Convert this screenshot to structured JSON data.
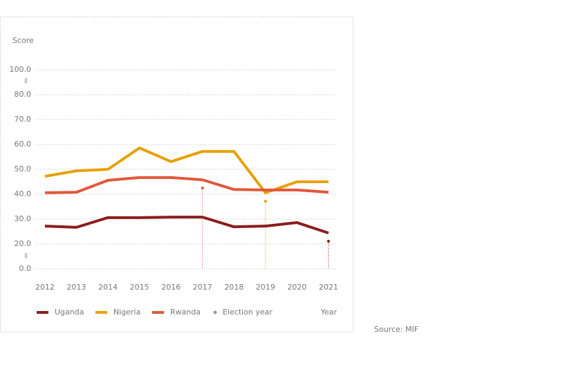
{
  "chart_data": {
    "type": "line",
    "y_label": "Score",
    "x_label": "Year",
    "source": "Source: MIF",
    "categories": [
      "2012",
      "2013",
      "2014",
      "2015",
      "2016",
      "2017",
      "2018",
      "2019",
      "2020",
      "2021"
    ],
    "series": [
      {
        "name": "Uganda",
        "color": "#8b1e1e",
        "values": [
          27.2,
          26.7,
          30.6,
          30.6,
          30.8,
          30.8,
          26.9,
          27.2,
          28.6,
          24.4
        ]
      },
      {
        "name": "Nigeria",
        "color": "#e8a000",
        "values": [
          47.2,
          49.4,
          50.0,
          58.6,
          53.1,
          57.2,
          57.2,
          40.6,
          45.0,
          45.0
        ]
      },
      {
        "name": "Rwanda",
        "color": "#e0583a",
        "values": [
          40.6,
          40.8,
          45.6,
          46.7,
          46.7,
          45.8,
          41.9,
          41.7,
          41.7,
          40.8
        ]
      }
    ],
    "election_legend": "Election year",
    "election_legend_color": "#999999",
    "election_markers": [
      {
        "category": "2017",
        "value": 42.5,
        "color": "#e0583a"
      },
      {
        "category": "2019",
        "value": 37.2,
        "color": "#e8a000"
      },
      {
        "category": "2021",
        "value": 21.1,
        "color": "#8b1e1e"
      }
    ],
    "ylim": [
      0,
      100
    ],
    "yticks": [
      {
        "value": 0,
        "label": "0.0"
      },
      {
        "value": 20,
        "label": "20.0"
      },
      {
        "value": 30,
        "label": "30.0"
      },
      {
        "value": 40,
        "label": "40.0"
      },
      {
        "value": 50,
        "label": "50.0"
      },
      {
        "value": 60,
        "label": "60.0"
      },
      {
        "value": 70,
        "label": "70.0"
      },
      {
        "value": 80,
        "label": "80.0"
      },
      {
        "value": 100,
        "label": "100.0"
      }
    ],
    "grid": true
  }
}
